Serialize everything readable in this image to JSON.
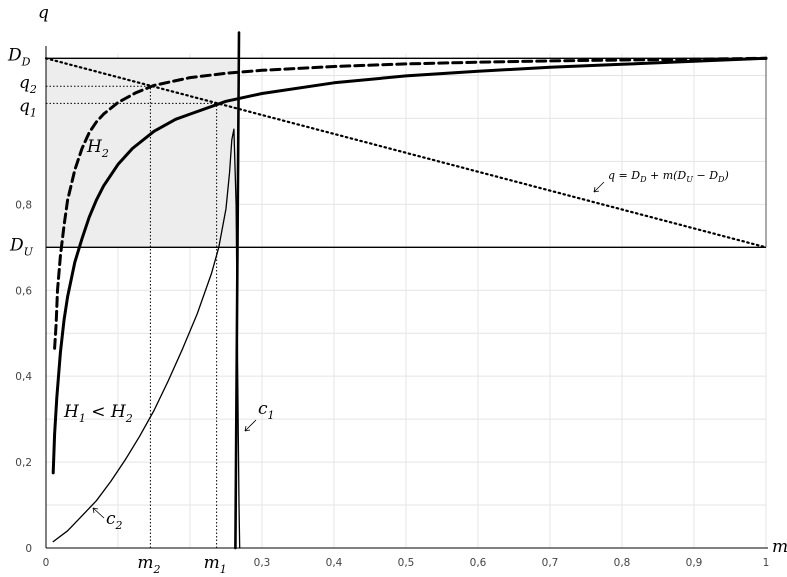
{
  "chart_data": {
    "type": "line",
    "xlabel": "m",
    "ylabel": "q",
    "xlim": [
      0,
      1
    ],
    "ylim": [
      0,
      1.15
    ],
    "grid": true,
    "x_ticks": [
      {
        "v": 0,
        "label": "0"
      },
      {
        "v": 0.3,
        "label": "0,3"
      },
      {
        "v": 0.4,
        "label": "0,4"
      },
      {
        "v": 0.5,
        "label": "0,5"
      },
      {
        "v": 0.6,
        "label": "0,6"
      },
      {
        "v": 0.7,
        "label": "0,7"
      },
      {
        "v": 0.8,
        "label": "0,8"
      },
      {
        "v": 0.9,
        "label": "0,9"
      },
      {
        "v": 1,
        "label": "1"
      }
    ],
    "y_ticks": [
      {
        "v": 0,
        "label": "0"
      },
      {
        "v": 0.2,
        "label": "0,2"
      },
      {
        "v": 0.4,
        "label": "0,4"
      },
      {
        "v": 0.6,
        "label": "0,6"
      },
      {
        "v": 0.8,
        "label": "0,8"
      }
    ],
    "special_x": [
      {
        "name": "m2",
        "v": 0.145,
        "label_main": "m",
        "label_sub": "2"
      },
      {
        "name": "m1",
        "v": 0.237,
        "label_main": "m",
        "label_sub": "1"
      }
    ],
    "special_y": [
      {
        "name": "DD",
        "v": 1.14,
        "label_main": "D",
        "label_sub": "D"
      },
      {
        "name": "q2",
        "v": 1.075,
        "label_main": "q",
        "label_sub": "2"
      },
      {
        "name": "q1",
        "v": 1.035,
        "label_main": "q",
        "label_sub": "1"
      },
      {
        "name": "DU",
        "v": 0.7,
        "label_main": "D",
        "label_sub": "U"
      }
    ],
    "shaded_region": {
      "x": [
        0,
        0.265
      ],
      "y": [
        0.7,
        1.14
      ]
    },
    "series": [
      {
        "name": "H2",
        "style": "dashed",
        "points": [
          [
            0.012,
            0.465
          ],
          [
            0.014,
            0.52
          ],
          [
            0.016,
            0.6
          ],
          [
            0.02,
            0.68
          ],
          [
            0.025,
            0.75
          ],
          [
            0.03,
            0.81
          ],
          [
            0.04,
            0.88
          ],
          [
            0.05,
            0.93
          ],
          [
            0.06,
            0.967
          ],
          [
            0.07,
            0.992
          ],
          [
            0.08,
            1.01
          ],
          [
            0.1,
            1.037
          ],
          [
            0.125,
            1.06
          ],
          [
            0.15,
            1.077
          ],
          [
            0.2,
            1.095
          ],
          [
            0.25,
            1.105
          ],
          [
            0.3,
            1.112
          ],
          [
            0.4,
            1.121
          ],
          [
            0.5,
            1.127
          ],
          [
            0.6,
            1.131
          ],
          [
            0.7,
            1.134
          ],
          [
            0.8,
            1.136
          ],
          [
            0.9,
            1.138
          ],
          [
            1.0,
            1.14
          ]
        ]
      },
      {
        "name": "H1",
        "style": "solid-thick",
        "points": [
          [
            0.01,
            0.175
          ],
          [
            0.012,
            0.265
          ],
          [
            0.015,
            0.35
          ],
          [
            0.02,
            0.455
          ],
          [
            0.025,
            0.53
          ],
          [
            0.03,
            0.585
          ],
          [
            0.04,
            0.665
          ],
          [
            0.05,
            0.72
          ],
          [
            0.06,
            0.77
          ],
          [
            0.07,
            0.81
          ],
          [
            0.08,
            0.843
          ],
          [
            0.1,
            0.893
          ],
          [
            0.12,
            0.93
          ],
          [
            0.15,
            0.97
          ],
          [
            0.18,
            0.998
          ],
          [
            0.2,
            1.01
          ],
          [
            0.25,
            1.04
          ],
          [
            0.3,
            1.058
          ],
          [
            0.4,
            1.083
          ],
          [
            0.5,
            1.099
          ],
          [
            0.6,
            1.11
          ],
          [
            0.7,
            1.119
          ],
          [
            0.8,
            1.126
          ],
          [
            0.9,
            1.133
          ],
          [
            1.0,
            1.14
          ]
        ]
      },
      {
        "name": "c2",
        "style": "solid-thin",
        "points": [
          [
            0.01,
            0.015
          ],
          [
            0.03,
            0.04
          ],
          [
            0.05,
            0.075
          ],
          [
            0.07,
            0.11
          ],
          [
            0.09,
            0.155
          ],
          [
            0.11,
            0.205
          ],
          [
            0.13,
            0.26
          ],
          [
            0.15,
            0.32
          ],
          [
            0.17,
            0.39
          ],
          [
            0.19,
            0.465
          ],
          [
            0.21,
            0.545
          ],
          [
            0.23,
            0.64
          ],
          [
            0.24,
            0.7
          ],
          [
            0.25,
            0.79
          ],
          [
            0.255,
            0.875
          ],
          [
            0.258,
            0.95
          ],
          [
            0.261,
            0.975
          ],
          [
            0.264,
            0.8
          ],
          [
            0.266,
            0.45
          ],
          [
            0.268,
            0.1
          ],
          [
            0.269,
            0.0
          ]
        ]
      },
      {
        "name": "c1",
        "style": "vertical",
        "points": [
          [
            0.263,
            0.0
          ],
          [
            0.266,
            0.7
          ],
          [
            0.268,
            1.2
          ]
        ]
      },
      {
        "name": "budget-line",
        "style": "dotted",
        "points": [
          [
            0,
            1.14
          ],
          [
            1,
            0.7
          ]
        ]
      }
    ],
    "annotations": [
      {
        "name": "H2",
        "text_main": "H",
        "text_sub": "2"
      },
      {
        "name": "H1<H2",
        "text": "H₁ < H₂"
      },
      {
        "name": "c1",
        "text_main": "c",
        "text_sub": "1"
      },
      {
        "name": "c2",
        "text_main": "c",
        "text_sub": "2"
      },
      {
        "name": "budget-line-label",
        "text": "q = D_D + m(D_U − D_D)"
      }
    ]
  }
}
